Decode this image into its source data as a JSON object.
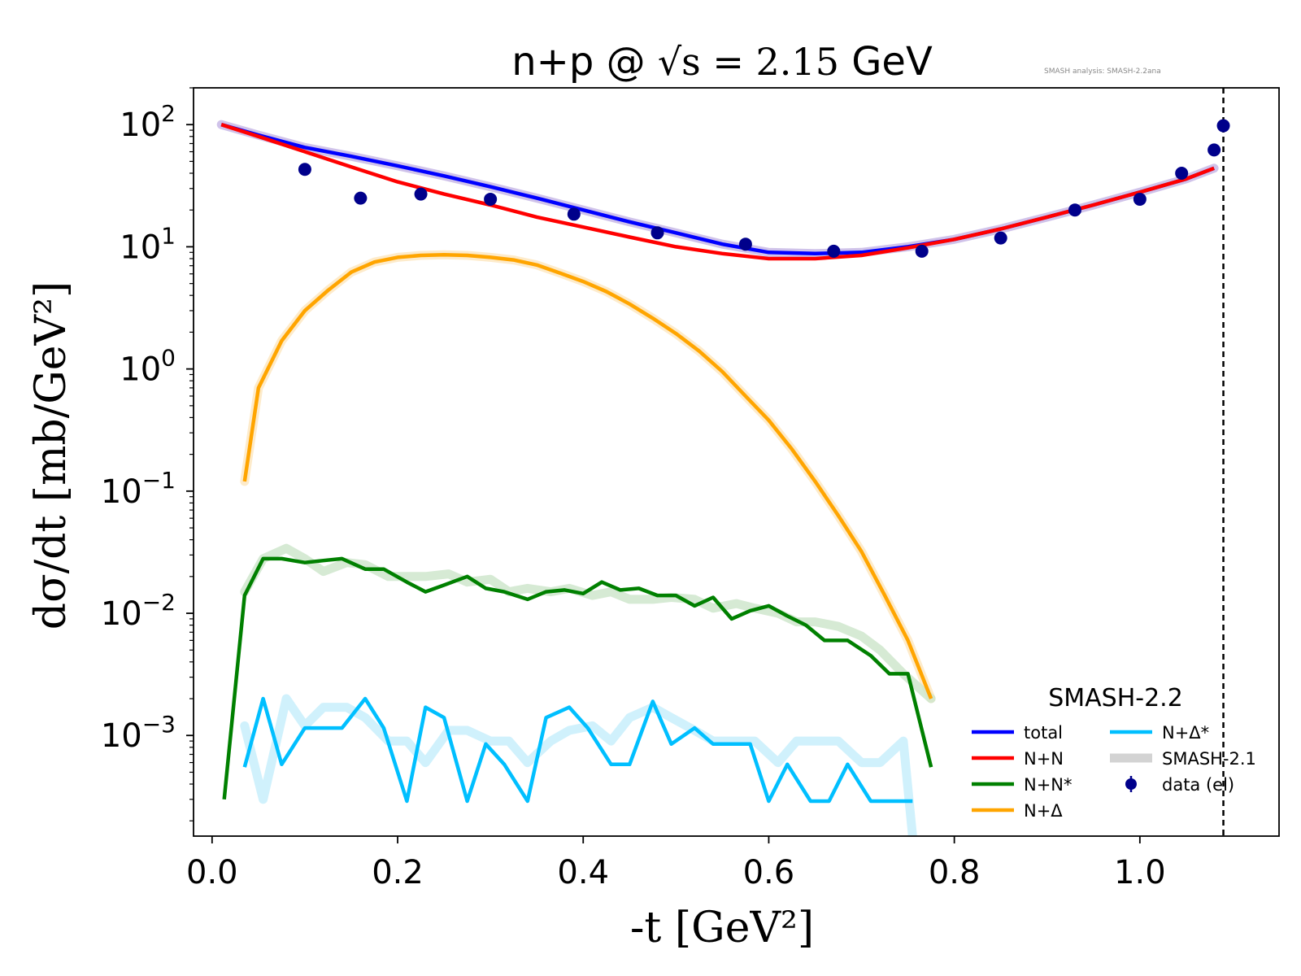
{
  "chart_data": {
    "type": "line",
    "title": {
      "prefix": "n+p @ ",
      "math": "√s = 2.15",
      "suffix": " GeV"
    },
    "watermark": "SMASH analysis: SMASH-2.2ana",
    "xlabel": "-t [GeV²]",
    "ylabel": "dσ/dt [mb/GeV²]",
    "x_scale": "linear",
    "y_scale": "log",
    "xlim": [
      -0.02,
      1.15
    ],
    "ylim": [
      0.00015,
      200
    ],
    "x_ticks": [
      {
        "value": 0.0,
        "label": "0.0"
      },
      {
        "value": 0.2,
        "label": "0.2"
      },
      {
        "value": 0.4,
        "label": "0.4"
      },
      {
        "value": 0.6,
        "label": "0.6"
      },
      {
        "value": 0.8,
        "label": "0.8"
      },
      {
        "value": 1.0,
        "label": "1.0"
      }
    ],
    "y_ticks": [
      {
        "value": 100,
        "base": "10",
        "exp": "2"
      },
      {
        "value": 10,
        "base": "10",
        "exp": "1"
      },
      {
        "value": 1,
        "base": "10",
        "exp": "0"
      },
      {
        "value": 0.1,
        "base": "10",
        "exp": "−1"
      },
      {
        "value": 0.01,
        "base": "10",
        "exp": "−2"
      },
      {
        "value": 0.001,
        "base": "10",
        "exp": "−3"
      }
    ],
    "vline": {
      "x": 1.09,
      "style": "dashed",
      "color": "#000000"
    },
    "legend": {
      "title": "SMASH-2.2",
      "position": "lower-right",
      "entries": [
        {
          "label": "total",
          "color": "#0000ff",
          "kind": "line"
        },
        {
          "label": "N+N",
          "color": "#ff0000",
          "kind": "line"
        },
        {
          "label": "N+N*",
          "color": "#008000",
          "kind": "line"
        },
        {
          "label": "N+Δ",
          "color": "#ffa500",
          "kind": "line"
        },
        {
          "label": "N+Δ*",
          "color": "#00bfff",
          "kind": "line"
        },
        {
          "label": "SMASH-2.1",
          "color": "#d3d3d3",
          "kind": "band"
        },
        {
          "label": "data (el)",
          "color": "#00008b",
          "kind": "marker"
        }
      ]
    },
    "series": [
      {
        "name": "total",
        "color": "#0000ff",
        "x": [
          0.01,
          0.05,
          0.1,
          0.15,
          0.2,
          0.25,
          0.3,
          0.35,
          0.4,
          0.45,
          0.5,
          0.55,
          0.6,
          0.65,
          0.7,
          0.75,
          0.8,
          0.85,
          0.9,
          0.95,
          1.0,
          1.05,
          1.08
        ],
        "y": [
          100,
          82,
          65,
          55,
          46,
          38,
          31,
          25,
          20,
          16,
          13,
          10.5,
          9.0,
          8.8,
          9.0,
          10,
          11.5,
          14,
          17.5,
          22,
          28,
          36,
          44
        ]
      },
      {
        "name": "N+N",
        "color": "#ff0000",
        "x": [
          0.01,
          0.05,
          0.1,
          0.15,
          0.2,
          0.25,
          0.3,
          0.35,
          0.4,
          0.45,
          0.5,
          0.55,
          0.6,
          0.65,
          0.7,
          0.75,
          0.8,
          0.85,
          0.9,
          0.95,
          1.0,
          1.05,
          1.08
        ],
        "y": [
          100,
          80,
          60,
          45,
          34,
          27,
          22,
          17.5,
          14.5,
          12,
          10,
          8.8,
          8.0,
          8.0,
          8.5,
          9.8,
          11.5,
          14,
          17.5,
          22,
          28,
          36,
          44
        ]
      },
      {
        "name": "N+Δ",
        "color": "#ffa500",
        "x": [
          0.035,
          0.05,
          0.075,
          0.1,
          0.125,
          0.15,
          0.175,
          0.2,
          0.225,
          0.25,
          0.275,
          0.3,
          0.325,
          0.35,
          0.375,
          0.4,
          0.425,
          0.45,
          0.475,
          0.5,
          0.525,
          0.55,
          0.575,
          0.6,
          0.625,
          0.65,
          0.675,
          0.7,
          0.725,
          0.75,
          0.775
        ],
        "y": [
          0.12,
          0.7,
          1.7,
          3.0,
          4.4,
          6.2,
          7.5,
          8.2,
          8.5,
          8.6,
          8.5,
          8.2,
          7.8,
          7.1,
          6.1,
          5.2,
          4.3,
          3.4,
          2.6,
          1.95,
          1.4,
          0.95,
          0.6,
          0.38,
          0.22,
          0.12,
          0.063,
          0.032,
          0.014,
          0.006,
          0.002
        ]
      },
      {
        "name": "N+N*",
        "color": "#008000",
        "x": [
          0.013,
          0.035,
          0.055,
          0.075,
          0.1,
          0.12,
          0.14,
          0.165,
          0.185,
          0.21,
          0.23,
          0.25,
          0.275,
          0.295,
          0.315,
          0.34,
          0.36,
          0.38,
          0.4,
          0.42,
          0.44,
          0.46,
          0.48,
          0.5,
          0.52,
          0.54,
          0.56,
          0.58,
          0.6,
          0.62,
          0.64,
          0.66,
          0.685,
          0.71,
          0.73,
          0.75,
          0.775
        ],
        "y": [
          0.0003,
          0.014,
          0.028,
          0.028,
          0.026,
          0.027,
          0.028,
          0.023,
          0.023,
          0.018,
          0.015,
          0.017,
          0.02,
          0.016,
          0.015,
          0.013,
          0.015,
          0.0155,
          0.0145,
          0.018,
          0.0155,
          0.016,
          0.014,
          0.014,
          0.0115,
          0.0135,
          0.009,
          0.0105,
          0.0115,
          0.0095,
          0.008,
          0.006,
          0.006,
          0.0045,
          0.0032,
          0.0032,
          0.00055
        ]
      },
      {
        "name": "N+Δ*",
        "color": "#00bfff",
        "x": [
          0.035,
          0.055,
          0.075,
          0.1,
          0.12,
          0.14,
          0.165,
          0.185,
          0.21,
          0.23,
          0.25,
          0.275,
          0.295,
          0.315,
          0.34,
          0.36,
          0.385,
          0.405,
          0.43,
          0.45,
          0.475,
          0.495,
          0.52,
          0.54,
          0.56,
          0.58,
          0.6,
          0.62,
          0.645,
          0.665,
          0.685,
          0.71,
          0.73,
          0.755
        ],
        "y": [
          0.00055,
          0.002,
          0.00058,
          0.00115,
          0.00115,
          0.00115,
          0.002,
          0.00115,
          0.00029,
          0.0017,
          0.0014,
          0.00029,
          0.00085,
          0.00058,
          0.00029,
          0.0014,
          0.0017,
          0.00115,
          0.00058,
          0.00058,
          0.0019,
          0.00085,
          0.00115,
          0.00085,
          0.00085,
          0.00085,
          0.00029,
          0.00058,
          0.00029,
          0.00029,
          0.00058,
          0.00029,
          0.00029,
          0.00029
        ]
      }
    ],
    "reference_bands": [
      {
        "name": "total (SMASH-2.1)",
        "color": "#c8b8e6",
        "x": [
          0.01,
          0.05,
          0.1,
          0.15,
          0.2,
          0.25,
          0.3,
          0.35,
          0.4,
          0.45,
          0.5,
          0.55,
          0.6,
          0.65,
          0.7,
          0.75,
          0.8,
          0.85,
          0.9,
          0.95,
          1.0,
          1.05,
          1.08
        ],
        "y": [
          100,
          82,
          65,
          55,
          46,
          38,
          31,
          25,
          20,
          16,
          13,
          10.5,
          9.0,
          8.8,
          9.0,
          10,
          11.5,
          14,
          17.5,
          22,
          28,
          36,
          44
        ]
      },
      {
        "name": "N+Δ (SMASH-2.1)",
        "color": "#fde8c2",
        "x": [
          0.035,
          0.05,
          0.075,
          0.1,
          0.125,
          0.15,
          0.175,
          0.2,
          0.225,
          0.25,
          0.275,
          0.3,
          0.325,
          0.35,
          0.375,
          0.4,
          0.425,
          0.45,
          0.475,
          0.5,
          0.525,
          0.55,
          0.575,
          0.6,
          0.625,
          0.65,
          0.675,
          0.7,
          0.725,
          0.75,
          0.775
        ],
        "y": [
          0.12,
          0.7,
          1.7,
          3.0,
          4.4,
          6.2,
          7.5,
          8.2,
          8.5,
          8.6,
          8.5,
          8.2,
          7.8,
          7.1,
          6.1,
          5.2,
          4.3,
          3.4,
          2.6,
          1.95,
          1.4,
          0.95,
          0.6,
          0.38,
          0.22,
          0.12,
          0.063,
          0.032,
          0.014,
          0.006,
          0.002
        ]
      },
      {
        "name": "N+N* (SMASH-2.1)",
        "color": "#cfe6cc",
        "x": [
          0.035,
          0.055,
          0.08,
          0.1,
          0.12,
          0.145,
          0.165,
          0.19,
          0.21,
          0.23,
          0.255,
          0.275,
          0.3,
          0.32,
          0.34,
          0.365,
          0.385,
          0.41,
          0.43,
          0.45,
          0.475,
          0.495,
          0.52,
          0.54,
          0.565,
          0.585,
          0.61,
          0.63,
          0.65,
          0.675,
          0.7,
          0.72,
          0.745,
          0.775
        ],
        "y": [
          0.015,
          0.028,
          0.034,
          0.028,
          0.022,
          0.026,
          0.025,
          0.02,
          0.02,
          0.02,
          0.021,
          0.018,
          0.019,
          0.015,
          0.016,
          0.015,
          0.016,
          0.014,
          0.015,
          0.013,
          0.013,
          0.0135,
          0.013,
          0.011,
          0.012,
          0.011,
          0.01,
          0.0085,
          0.0085,
          0.0078,
          0.0065,
          0.005,
          0.0032,
          0.002
        ]
      },
      {
        "name": "N+Δ* (SMASH-2.1)",
        "color": "#c8eefc",
        "x": [
          0.035,
          0.055,
          0.08,
          0.1,
          0.12,
          0.145,
          0.165,
          0.19,
          0.21,
          0.23,
          0.255,
          0.275,
          0.3,
          0.32,
          0.34,
          0.365,
          0.385,
          0.41,
          0.43,
          0.45,
          0.475,
          0.495,
          0.52,
          0.54,
          0.565,
          0.585,
          0.61,
          0.63,
          0.65,
          0.675,
          0.7,
          0.72,
          0.745,
          0.755
        ],
        "y": [
          0.0012,
          0.0003,
          0.002,
          0.0012,
          0.0017,
          0.0017,
          0.0014,
          0.0009,
          0.0009,
          0.0006,
          0.0011,
          0.0011,
          0.0009,
          0.0009,
          0.0006,
          0.0009,
          0.0011,
          0.0012,
          0.0009,
          0.0014,
          0.0017,
          0.0014,
          0.0011,
          0.0009,
          0.0009,
          0.0009,
          0.0006,
          0.0009,
          0.0009,
          0.0009,
          0.0006,
          0.0006,
          0.0009,
          0.00015
        ]
      }
    ],
    "data_points": {
      "name": "data (el)",
      "color": "#00008b",
      "x": [
        0.1,
        0.16,
        0.225,
        0.3,
        0.39,
        0.48,
        0.575,
        0.67,
        0.765,
        0.85,
        0.93,
        1.0,
        1.045,
        1.08,
        1.09
      ],
      "y": [
        43,
        25,
        27,
        24.5,
        18.5,
        13,
        10.5,
        9.2,
        9.2,
        11.8,
        20,
        24.5,
        40,
        62,
        98
      ]
    }
  }
}
